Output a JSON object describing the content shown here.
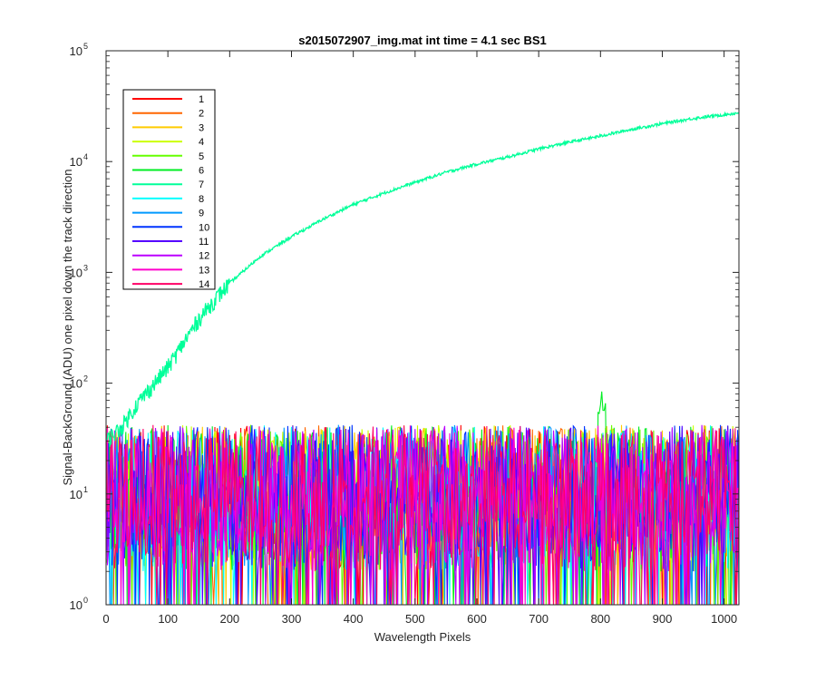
{
  "chart_data": {
    "type": "line",
    "title": "s2015072907_img.mat int time = 4.1 sec   BS1",
    "xlabel": "Wavelength Pixels",
    "ylabel": "Signal-BackGround (ADU) one pixel down the track direction",
    "xlim": [
      0,
      1024
    ],
    "ylim": [
      1,
      100000
    ],
    "yscale": "log",
    "grid": false,
    "legend_position": "top-left",
    "x_ticks": [
      "0",
      "100",
      "200",
      "300",
      "400",
      "500",
      "600",
      "700",
      "800",
      "900",
      "1000"
    ],
    "y_ticks": [
      {
        "base": "10",
        "exp": "0"
      },
      {
        "base": "10",
        "exp": "1"
      },
      {
        "base": "10",
        "exp": "2"
      },
      {
        "base": "10",
        "exp": "3"
      },
      {
        "base": "10",
        "exp": "4"
      },
      {
        "base": "10",
        "exp": "5"
      }
    ],
    "series": [
      {
        "name": "1",
        "color": "#ff0000",
        "level": "noise",
        "values": []
      },
      {
        "name": "2",
        "color": "#ff6600",
        "level": "noise",
        "values": []
      },
      {
        "name": "3",
        "color": "#ffcc00",
        "level": "noise",
        "values": []
      },
      {
        "name": "4",
        "color": "#ccff00",
        "level": "noise",
        "values": []
      },
      {
        "name": "5",
        "color": "#66ff00",
        "level": "noise",
        "values": []
      },
      {
        "name": "6",
        "color": "#00ee22",
        "level": "noise",
        "values": []
      },
      {
        "name": "7",
        "color": "#00ff99",
        "level": "signal",
        "x": [
          0,
          25,
          50,
          75,
          100,
          125,
          150,
          175,
          200,
          250,
          300,
          350,
          400,
          450,
          500,
          550,
          600,
          650,
          700,
          750,
          800,
          850,
          900,
          950,
          1000,
          1024
        ],
        "values": [
          30,
          40,
          65,
          95,
          140,
          230,
          380,
          560,
          800,
          1400,
          2100,
          3000,
          4100,
          5200,
          6500,
          8000,
          9500,
          11000,
          13000,
          15000,
          17000,
          19500,
          22000,
          24500,
          26500,
          27500
        ]
      },
      {
        "name": "8",
        "color": "#00ffff",
        "level": "noise",
        "values": []
      },
      {
        "name": "9",
        "color": "#0099ff",
        "level": "noise",
        "values": []
      },
      {
        "name": "10",
        "color": "#0033ff",
        "level": "noise",
        "values": []
      },
      {
        "name": "11",
        "color": "#5500ff",
        "level": "noise",
        "values": []
      },
      {
        "name": "12",
        "color": "#bb00ff",
        "level": "noise",
        "values": []
      },
      {
        "name": "13",
        "color": "#ff00cc",
        "level": "noise",
        "values": []
      },
      {
        "name": "14",
        "color": "#ff0066",
        "level": "noise",
        "values": []
      }
    ]
  }
}
